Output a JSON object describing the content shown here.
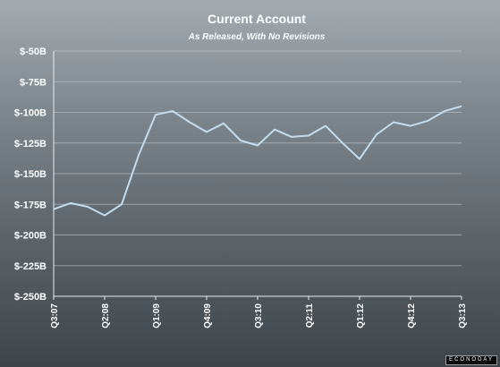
{
  "chart_data": {
    "type": "line",
    "title": "Current Account",
    "subtitle": "As Released, With No Revisions",
    "ylim": [
      -250,
      -50
    ],
    "yticks": [
      -50,
      -75,
      -100,
      -125,
      -150,
      -175,
      -200,
      -225,
      -250
    ],
    "ytick_labels": [
      "$-50B",
      "$-75B",
      "$-100B",
      "$-125B",
      "$-150B",
      "$-175B",
      "$-200B",
      "$-225B",
      "$-250B"
    ],
    "x": [
      "Q3:07",
      "Q4:07",
      "Q1:08",
      "Q2:08",
      "Q3:08",
      "Q4:08",
      "Q1:09",
      "Q2:09",
      "Q3:09",
      "Q4:09",
      "Q1:10",
      "Q2:10",
      "Q3:10",
      "Q4:10",
      "Q1:11",
      "Q2:11",
      "Q3:11",
      "Q4:11",
      "Q1:12",
      "Q2:12",
      "Q3:12",
      "Q4:12",
      "Q1:13",
      "Q2:13",
      "Q3:13"
    ],
    "xtick_labels": [
      "Q3:07",
      "Q2:08",
      "Q1:09",
      "Q4:09",
      "Q3:10",
      "Q2:11",
      "Q1:12",
      "Q4:12",
      "Q3:13"
    ],
    "series": [
      {
        "values": [
          -179,
          -174,
          -177,
          -184,
          -175,
          -135,
          -102,
          -99,
          -108,
          -116,
          -109,
          -123,
          -127,
          -114,
          -120,
          -119,
          -111,
          -125,
          -138,
          -118,
          -108,
          -111,
          -107,
          -99,
          -95
        ],
        "color": "#c2dcf0"
      }
    ],
    "grid": true,
    "logo": "ECONODAY"
  }
}
